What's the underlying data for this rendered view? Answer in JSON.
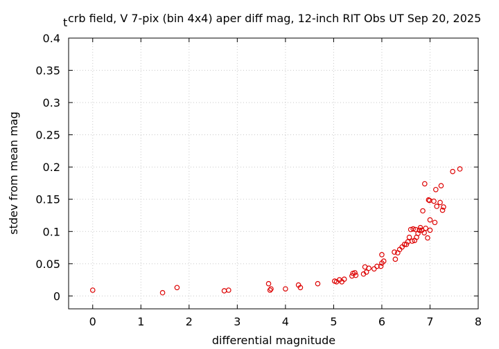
{
  "chart_data": {
    "type": "scatter",
    "title_prefix": "t",
    "title": "crb field, V 7-pix (bin 4x4) aper diff mag,  12-inch RIT Obs UT Sep 20, 2025",
    "xlabel": "differential magnitude",
    "ylabel": "stdev from mean mag",
    "xlim": [
      -0.5,
      8
    ],
    "ylim": [
      -0.02,
      0.4
    ],
    "x_ticks": [
      0,
      1,
      2,
      3,
      4,
      5,
      6,
      7,
      8
    ],
    "x_tick_labels": [
      "0",
      "1",
      "2",
      "3",
      "4",
      "5",
      "6",
      "7",
      "8"
    ],
    "y_ticks": [
      0,
      0.05,
      0.1,
      0.15,
      0.2,
      0.25,
      0.3,
      0.35,
      0.4
    ],
    "y_tick_labels": [
      "0",
      "0.05",
      "0.1",
      "0.15",
      "0.2",
      "0.25",
      "0.3",
      "0.35",
      "0.4"
    ],
    "grid": true,
    "marker_color": "#dd0000",
    "points": [
      [
        0.0,
        0.009
      ],
      [
        1.45,
        0.005
      ],
      [
        1.75,
        0.013
      ],
      [
        2.73,
        0.008
      ],
      [
        2.82,
        0.009
      ],
      [
        3.65,
        0.019
      ],
      [
        3.68,
        0.009
      ],
      [
        3.7,
        0.011
      ],
      [
        4.0,
        0.011
      ],
      [
        4.27,
        0.017
      ],
      [
        4.31,
        0.013
      ],
      [
        4.67,
        0.019
      ],
      [
        5.02,
        0.023
      ],
      [
        5.06,
        0.022
      ],
      [
        5.12,
        0.025
      ],
      [
        5.17,
        0.022
      ],
      [
        5.22,
        0.026
      ],
      [
        5.38,
        0.031
      ],
      [
        5.4,
        0.035
      ],
      [
        5.44,
        0.036
      ],
      [
        5.46,
        0.032
      ],
      [
        5.62,
        0.034
      ],
      [
        5.65,
        0.045
      ],
      [
        5.68,
        0.037
      ],
      [
        5.73,
        0.043
      ],
      [
        5.84,
        0.042
      ],
      [
        5.9,
        0.046
      ],
      [
        5.98,
        0.046
      ],
      [
        6.0,
        0.051
      ],
      [
        6.0,
        0.064
      ],
      [
        6.04,
        0.054
      ],
      [
        6.26,
        0.068
      ],
      [
        6.28,
        0.057
      ],
      [
        6.33,
        0.067
      ],
      [
        6.37,
        0.072
      ],
      [
        6.42,
        0.076
      ],
      [
        6.47,
        0.08
      ],
      [
        6.51,
        0.08
      ],
      [
        6.54,
        0.084
      ],
      [
        6.57,
        0.091
      ],
      [
        6.6,
        0.103
      ],
      [
        6.63,
        0.085
      ],
      [
        6.65,
        0.104
      ],
      [
        6.68,
        0.086
      ],
      [
        6.7,
        0.103
      ],
      [
        6.72,
        0.091
      ],
      [
        6.75,
        0.097
      ],
      [
        6.78,
        0.102
      ],
      [
        6.8,
        0.106
      ],
      [
        6.83,
        0.102
      ],
      [
        6.85,
        0.132
      ],
      [
        6.88,
        0.098
      ],
      [
        6.89,
        0.174
      ],
      [
        6.91,
        0.105
      ],
      [
        6.95,
        0.09
      ],
      [
        6.97,
        0.149
      ],
      [
        6.99,
        0.148
      ],
      [
        7.0,
        0.118
      ],
      [
        7.0,
        0.102
      ],
      [
        7.08,
        0.147
      ],
      [
        7.1,
        0.114
      ],
      [
        7.12,
        0.165
      ],
      [
        7.14,
        0.139
      ],
      [
        7.21,
        0.145
      ],
      [
        7.23,
        0.171
      ],
      [
        7.26,
        0.133
      ],
      [
        7.28,
        0.138
      ],
      [
        7.47,
        0.193
      ],
      [
        7.62,
        0.197
      ]
    ]
  }
}
